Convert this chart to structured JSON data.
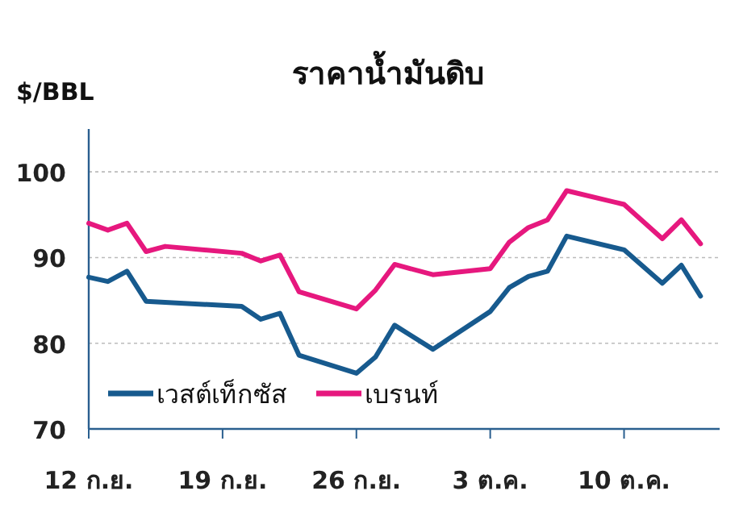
{
  "chart_data": {
    "type": "line",
    "title": "ราคาน้ำมันดิบ",
    "ylabel": "$/BBL",
    "series": [
      {
        "name": "เวสต์เท็กซัส",
        "color": "#175a8e",
        "x": [
          "--09-12",
          "--09-13",
          "--09-14",
          "--09-15",
          "--09-20",
          "--09-21",
          "--09-22",
          "--09-23",
          "--09-26",
          "--09-27",
          "--09-28",
          "--09-30",
          "--10-03",
          "--10-04",
          "--10-05",
          "--10-06",
          "--10-07",
          "--10-10",
          "--10-12",
          "--10-13",
          "--10-14"
        ],
        "values": [
          87.7,
          87.2,
          88.4,
          84.9,
          84.3,
          82.8,
          83.5,
          78.6,
          76.5,
          78.4,
          82.1,
          79.3,
          83.7,
          86.5,
          87.8,
          88.4,
          92.5,
          90.9,
          87.0,
          89.1,
          85.5
        ]
      },
      {
        "name": "เบรนท์",
        "color": "#e6187e",
        "x": [
          "--09-12",
          "--09-13",
          "--09-14",
          "--09-15",
          "--09-16",
          "--09-20",
          "--09-21",
          "--09-22",
          "--09-23",
          "--09-26",
          "--09-27",
          "--09-28",
          "--09-30",
          "--10-03",
          "--10-04",
          "--10-05",
          "--10-06",
          "--10-07",
          "--10-10",
          "--10-12",
          "--10-13",
          "--10-14"
        ],
        "values": [
          94.0,
          93.2,
          94.0,
          90.7,
          91.3,
          90.5,
          89.6,
          90.3,
          86.0,
          84.0,
          86.2,
          89.2,
          88.0,
          88.7,
          91.8,
          93.5,
          94.4,
          97.8,
          96.2,
          92.2,
          94.4,
          91.6
        ]
      }
    ],
    "xlim": [
      "--09-12",
      "--10-15"
    ],
    "xticks": [
      {
        "value": "--09-12",
        "label": "12 ก.ย."
      },
      {
        "value": "--09-19",
        "label": "19 ก.ย."
      },
      {
        "value": "--09-26",
        "label": "26 ก.ย."
      },
      {
        "value": "--10-03",
        "label": "3 ต.ค."
      },
      {
        "value": "--10-10",
        "label": "10 ต.ค."
      }
    ],
    "ylim": [
      70,
      105
    ],
    "yticks": [
      70,
      80,
      90,
      100
    ],
    "grid": "y",
    "legend": "bottom left",
    "marker": "none",
    "line_style": "solid"
  }
}
